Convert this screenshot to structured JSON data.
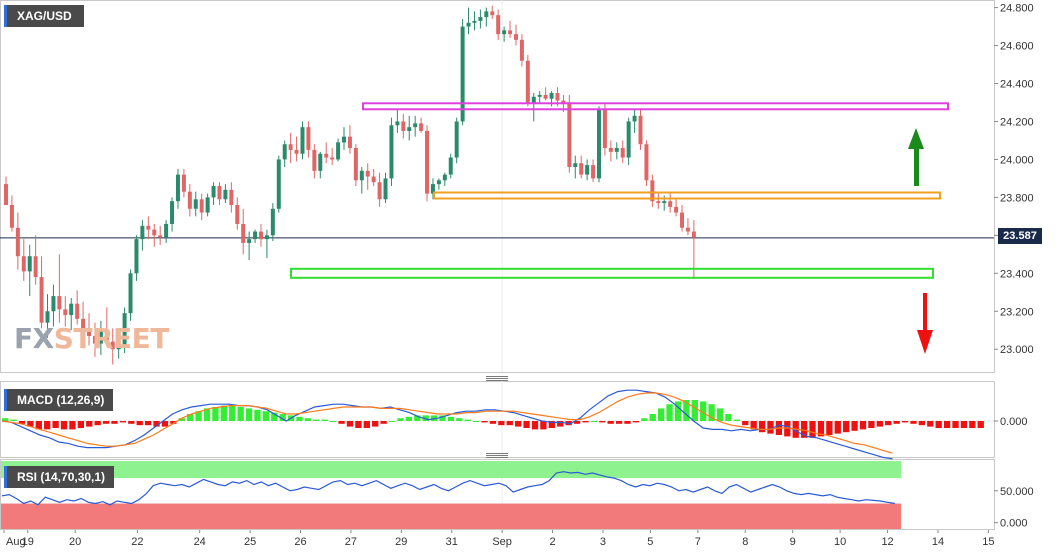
{
  "chart_data": [
    {
      "type": "candlestick",
      "symbol": "XAG/USD",
      "price_axis_ticks": [
        24.8,
        24.6,
        24.4,
        24.2,
        24.0,
        23.8,
        23.6,
        23.4,
        23.2,
        23.0
      ],
      "price_axis_labels": [
        "24.800",
        "24.600",
        "24.400",
        "24.200",
        "24.000",
        "23.800",
        "23.600",
        "23.400",
        "23.200",
        "23.000"
      ],
      "ylim": [
        22.88,
        24.84
      ],
      "last_price": 23.587,
      "last_price_label": "23.587",
      "x_axis_labels": [
        "Aug",
        "19",
        "20",
        "22",
        "24",
        "25",
        "26",
        "27",
        "29",
        "31",
        "Sep",
        "2",
        "3",
        "5",
        "7",
        "8",
        "9",
        "10",
        "12",
        "14",
        "15"
      ],
      "x_axis_label_slots": [
        0,
        4,
        12,
        22.5,
        33,
        41.5,
        50,
        58.5,
        67,
        75.5,
        84,
        92.5,
        101,
        109,
        117,
        125,
        133,
        141,
        149,
        157.5,
        166
      ],
      "bar_count": 156,
      "candles": [
        [
          23.87,
          23.91,
          23.76,
          23.76
        ],
        [
          23.76,
          23.81,
          23.62,
          23.64
        ],
        [
          23.64,
          23.72,
          23.42,
          23.49
        ],
        [
          23.49,
          23.58,
          23.36,
          23.41
        ],
        [
          23.41,
          23.55,
          23.28,
          23.49
        ],
        [
          23.49,
          23.6,
          23.34,
          23.38
        ],
        [
          23.38,
          23.49,
          23.11,
          23.14
        ],
        [
          23.14,
          23.29,
          23.06,
          23.2
        ],
        [
          23.2,
          23.34,
          23.12,
          23.28
        ],
        [
          23.28,
          23.5,
          23.14,
          23.21
        ],
        [
          23.21,
          23.28,
          23.12,
          23.18
        ],
        [
          23.18,
          23.27,
          23.1,
          23.24
        ],
        [
          23.24,
          23.31,
          23.13,
          23.16
        ],
        [
          23.16,
          23.25,
          23.05,
          23.11
        ],
        [
          23.11,
          23.19,
          23.02,
          23.07
        ],
        [
          23.07,
          23.14,
          22.96,
          23.03
        ],
        [
          23.03,
          23.15,
          22.97,
          23.1
        ],
        [
          23.1,
          23.22,
          23.02,
          23.04
        ],
        [
          23.04,
          23.11,
          22.92,
          23.0
        ],
        [
          23.0,
          23.06,
          22.95,
          23.01
        ],
        [
          23.01,
          23.22,
          22.98,
          23.19
        ],
        [
          23.19,
          23.42,
          23.15,
          23.4
        ],
        [
          23.4,
          23.6,
          23.36,
          23.58
        ],
        [
          23.58,
          23.68,
          23.52,
          23.65
        ],
        [
          23.65,
          23.7,
          23.58,
          23.63
        ],
        [
          23.63,
          23.66,
          23.54,
          23.6
        ],
        [
          23.6,
          23.65,
          23.55,
          23.59
        ],
        [
          23.59,
          23.68,
          23.56,
          23.66
        ],
        [
          23.66,
          23.8,
          23.62,
          23.78
        ],
        [
          23.78,
          23.95,
          23.74,
          23.92
        ],
        [
          23.92,
          23.95,
          23.8,
          23.83
        ],
        [
          23.83,
          23.87,
          23.7,
          23.74
        ],
        [
          23.74,
          23.83,
          23.7,
          23.79
        ],
        [
          23.79,
          23.82,
          23.68,
          23.72
        ],
        [
          23.72,
          23.82,
          23.7,
          23.8
        ],
        [
          23.8,
          23.88,
          23.76,
          23.86
        ],
        [
          23.86,
          23.88,
          23.76,
          23.79
        ],
        [
          23.79,
          23.87,
          23.77,
          23.84
        ],
        [
          23.84,
          23.88,
          23.72,
          23.76
        ],
        [
          23.76,
          23.8,
          23.63,
          23.66
        ],
        [
          23.66,
          23.74,
          23.5,
          23.56
        ],
        [
          23.56,
          23.62,
          23.47,
          23.58
        ],
        [
          23.58,
          23.63,
          23.56,
          23.62
        ],
        [
          23.62,
          23.66,
          23.54,
          23.58
        ],
        [
          23.58,
          23.63,
          23.48,
          23.6
        ],
        [
          23.6,
          23.77,
          23.57,
          23.74
        ],
        [
          23.74,
          24.02,
          23.72,
          24.0
        ],
        [
          24.0,
          24.1,
          23.96,
          24.08
        ],
        [
          24.08,
          24.14,
          23.98,
          24.05
        ],
        [
          24.05,
          24.12,
          23.99,
          24.03
        ],
        [
          24.03,
          24.2,
          24.0,
          24.17
        ],
        [
          24.17,
          24.2,
          24.01,
          24.05
        ],
        [
          24.05,
          24.08,
          23.9,
          23.94
        ],
        [
          23.94,
          24.04,
          23.9,
          24.03
        ],
        [
          24.03,
          24.09,
          23.98,
          24.01
        ],
        [
          24.01,
          24.06,
          23.97,
          24.0
        ],
        [
          24.0,
          24.11,
          23.99,
          24.09
        ],
        [
          24.09,
          24.17,
          24.05,
          24.12
        ],
        [
          24.12,
          24.18,
          24.03,
          24.06
        ],
        [
          24.06,
          24.08,
          23.86,
          23.89
        ],
        [
          23.89,
          23.96,
          23.82,
          23.94
        ],
        [
          23.94,
          23.98,
          23.84,
          23.91
        ],
        [
          23.91,
          23.95,
          23.86,
          23.88
        ],
        [
          23.88,
          23.93,
          23.75,
          23.79
        ],
        [
          23.79,
          23.93,
          23.77,
          23.9
        ],
        [
          23.9,
          24.22,
          23.86,
          24.18
        ],
        [
          24.18,
          24.26,
          24.14,
          24.2
        ],
        [
          24.2,
          24.24,
          24.11,
          24.15
        ],
        [
          24.15,
          24.23,
          24.1,
          24.17
        ],
        [
          24.17,
          24.23,
          24.12,
          24.19
        ],
        [
          24.19,
          24.22,
          24.14,
          24.15
        ],
        [
          24.15,
          24.18,
          23.78,
          23.82
        ],
        [
          23.82,
          23.9,
          23.79,
          23.87
        ],
        [
          23.87,
          23.9,
          23.84,
          23.89
        ],
        [
          23.89,
          23.93,
          23.86,
          23.92
        ],
        [
          23.92,
          24.03,
          23.9,
          24.01
        ],
        [
          24.01,
          24.22,
          23.98,
          24.2
        ],
        [
          24.2,
          24.74,
          24.18,
          24.7
        ],
        [
          24.7,
          24.8,
          24.66,
          24.72
        ],
        [
          24.72,
          24.78,
          24.68,
          24.73
        ],
        [
          24.73,
          24.79,
          24.69,
          24.75
        ],
        [
          24.75,
          24.8,
          24.7,
          24.78
        ],
        [
          24.78,
          24.81,
          24.74,
          24.76
        ],
        [
          24.76,
          24.79,
          24.63,
          24.66
        ],
        [
          24.66,
          24.7,
          24.62,
          24.68
        ],
        [
          24.68,
          24.73,
          24.64,
          24.66
        ],
        [
          24.66,
          24.71,
          24.6,
          24.63
        ],
        [
          24.63,
          24.66,
          24.49,
          24.52
        ],
        [
          24.52,
          24.55,
          24.28,
          24.3
        ],
        [
          24.3,
          24.35,
          24.2,
          24.33
        ],
        [
          24.33,
          24.36,
          24.3,
          24.34
        ],
        [
          24.34,
          24.38,
          24.31,
          24.32
        ],
        [
          24.32,
          24.36,
          24.28,
          24.35
        ],
        [
          24.35,
          24.38,
          24.28,
          24.31
        ],
        [
          24.31,
          24.34,
          24.25,
          24.3
        ],
        [
          24.3,
          24.34,
          23.93,
          23.96
        ],
        [
          23.96,
          24.02,
          23.9,
          23.98
        ],
        [
          23.98,
          24.02,
          23.9,
          23.92
        ],
        [
          23.92,
          24.0,
          23.89,
          23.97
        ],
        [
          23.97,
          24.0,
          23.88,
          23.9
        ],
        [
          23.9,
          24.28,
          23.88,
          24.26
        ],
        [
          24.26,
          24.3,
          24.02,
          24.06
        ],
        [
          24.06,
          24.1,
          23.99,
          24.04
        ],
        [
          24.04,
          24.09,
          24.0,
          24.06
        ],
        [
          24.06,
          24.1,
          23.98,
          24.01
        ],
        [
          24.01,
          24.22,
          23.97,
          24.2
        ],
        [
          24.2,
          24.26,
          24.14,
          24.23
        ],
        [
          24.23,
          24.27,
          24.05,
          24.08
        ],
        [
          24.08,
          24.1,
          23.86,
          23.89
        ],
        [
          23.89,
          23.92,
          23.75,
          23.78
        ],
        [
          23.78,
          23.82,
          23.74,
          23.77
        ],
        [
          23.77,
          23.81,
          23.73,
          23.78
        ],
        [
          23.78,
          23.82,
          23.72,
          23.75
        ],
        [
          23.75,
          23.79,
          23.7,
          23.72
        ],
        [
          23.72,
          23.76,
          23.62,
          23.64
        ],
        [
          23.64,
          23.69,
          23.6,
          23.62
        ],
        [
          23.62,
          23.68,
          23.37,
          23.587
        ]
      ],
      "levels": [
        {
          "price": 24.28,
          "color": "#e040e0"
        },
        {
          "price": 23.81,
          "color": "#f0a020"
        },
        {
          "price": 23.4,
          "color": "#33dd33"
        }
      ],
      "arrows": [
        {
          "direction": "up",
          "color": "#1a8a1a"
        },
        {
          "direction": "down",
          "color": "#ee1111"
        }
      ]
    },
    {
      "type": "macd",
      "label": "MACD (12,26,9)",
      "axis_label": "0.000",
      "histogram": [
        0.02,
        0.01,
        -0.02,
        -0.04,
        -0.06,
        -0.06,
        -0.05,
        -0.06,
        -0.06,
        -0.05,
        -0.04,
        -0.03,
        -0.02,
        -0.02,
        -0.01,
        -0.02,
        -0.03,
        -0.03,
        -0.04,
        -0.04,
        -0.02,
        0.02,
        0.05,
        0.07,
        0.09,
        0.1,
        0.11,
        0.11,
        0.1,
        0.09,
        0.08,
        0.07,
        0.06,
        0.05,
        0.04,
        0.03,
        0.02,
        0.01,
        0.01,
        0.0,
        -0.02,
        -0.04,
        -0.05,
        -0.05,
        -0.04,
        -0.02,
        0.0,
        0.02,
        0.03,
        0.04,
        0.04,
        0.04,
        0.04,
        0.03,
        0.02,
        0.01,
        0.0,
        -0.01,
        -0.02,
        -0.03,
        -0.03,
        -0.04,
        -0.05,
        -0.06,
        -0.06,
        -0.05,
        -0.04,
        -0.03,
        -0.02,
        -0.01,
        0.0,
        -0.01,
        -0.02,
        -0.02,
        -0.02,
        -0.01,
        0.02,
        0.05,
        0.09,
        0.12,
        0.14,
        0.15,
        0.15,
        0.14,
        0.12,
        0.09,
        0.05,
        0.01,
        -0.03,
        -0.06,
        -0.08,
        -0.09,
        -0.1,
        -0.11,
        -0.12,
        -0.12,
        -0.12,
        -0.11,
        -0.1,
        -0.09,
        -0.08,
        -0.07,
        -0.06,
        -0.05,
        -0.04,
        -0.03,
        -0.02,
        -0.01,
        -0.02,
        -0.03,
        -0.04,
        -0.05,
        -0.05,
        -0.05,
        -0.05,
        -0.05,
        -0.05
      ],
      "macd_line": [
        0.0,
        -0.01,
        -0.04,
        -0.07,
        -0.1,
        -0.12,
        -0.15,
        -0.16,
        -0.18,
        -0.19,
        -0.19,
        -0.19,
        -0.18,
        -0.17,
        -0.14,
        -0.1,
        -0.05,
        0.0,
        0.05,
        0.08,
        0.1,
        0.11,
        0.12,
        0.12,
        0.12,
        0.11,
        0.11,
        0.1,
        0.08,
        0.04,
        0.0,
        0.04,
        0.07,
        0.1,
        0.11,
        0.12,
        0.12,
        0.11,
        0.1,
        0.1,
        0.09,
        0.1,
        0.08,
        0.06,
        0.03,
        0.01,
        0.02,
        0.04,
        0.06,
        0.07,
        0.07,
        0.08,
        0.08,
        0.07,
        0.06,
        0.04,
        0.02,
        0.0,
        -0.01,
        -0.01,
        -0.02,
        0.02,
        0.08,
        0.13,
        0.18,
        0.21,
        0.22,
        0.22,
        0.21,
        0.2,
        0.17,
        0.12,
        0.06,
        0.0,
        -0.05,
        -0.06,
        -0.06,
        -0.07,
        -0.06,
        -0.07,
        -0.06,
        -0.06,
        -0.03,
        -0.04,
        -0.08,
        -0.11,
        -0.12,
        -0.14,
        -0.16,
        -0.18,
        -0.2,
        -0.22,
        -0.24,
        -0.26,
        -0.27
      ],
      "signal_line": [
        0.0,
        -0.01,
        -0.02,
        -0.04,
        -0.06,
        -0.08,
        -0.1,
        -0.12,
        -0.14,
        -0.16,
        -0.17,
        -0.18,
        -0.18,
        -0.17,
        -0.16,
        -0.13,
        -0.1,
        -0.06,
        -0.02,
        0.02,
        0.05,
        0.07,
        0.09,
        0.1,
        0.11,
        0.11,
        0.11,
        0.1,
        0.09,
        0.07,
        0.05,
        0.05,
        0.06,
        0.07,
        0.08,
        0.09,
        0.1,
        0.1,
        0.1,
        0.1,
        0.09,
        0.09,
        0.09,
        0.08,
        0.07,
        0.06,
        0.05,
        0.05,
        0.05,
        0.06,
        0.06,
        0.07,
        0.07,
        0.07,
        0.07,
        0.06,
        0.05,
        0.04,
        0.03,
        0.02,
        0.01,
        0.01,
        0.03,
        0.06,
        0.1,
        0.14,
        0.17,
        0.19,
        0.2,
        0.2,
        0.19,
        0.17,
        0.14,
        0.1,
        0.06,
        0.02,
        -0.01,
        -0.03,
        -0.04,
        -0.05,
        -0.06,
        -0.06,
        -0.05,
        -0.05,
        -0.06,
        -0.07,
        -0.09,
        -0.1,
        -0.12,
        -0.14,
        -0.16,
        -0.17,
        -0.19,
        -0.21,
        -0.23
      ]
    },
    {
      "type": "rsi",
      "label": "RSI (14,70,30,1)",
      "axis_labels": [
        "50.000",
        "0.000"
      ],
      "upper_band": 70,
      "lower_band": 30,
      "ylim": [
        -10,
        100
      ],
      "values": [
        42,
        44,
        38,
        30,
        34,
        28,
        40,
        36,
        32,
        36,
        34,
        38,
        32,
        30,
        33,
        28,
        34,
        32,
        30,
        36,
        45,
        58,
        62,
        60,
        58,
        60,
        56,
        62,
        68,
        64,
        60,
        58,
        64,
        62,
        66,
        60,
        64,
        58,
        62,
        56,
        50,
        52,
        56,
        54,
        52,
        58,
        64,
        66,
        60,
        62,
        58,
        62,
        66,
        60,
        54,
        58,
        62,
        58,
        52,
        56,
        60,
        54,
        50,
        56,
        62,
        66,
        62,
        58,
        60,
        62,
        58,
        48,
        52,
        56,
        58,
        60,
        66,
        78,
        80,
        78,
        79,
        76,
        78,
        75,
        72,
        70,
        66,
        60,
        56,
        60,
        58,
        62,
        60,
        56,
        50,
        52,
        48,
        52,
        56,
        50,
        46,
        56,
        60,
        54,
        48,
        52,
        56,
        60,
        56,
        50,
        46,
        44,
        46,
        44,
        42,
        44,
        40,
        38,
        36,
        34,
        36,
        35,
        34,
        32,
        30
      ]
    }
  ]
}
